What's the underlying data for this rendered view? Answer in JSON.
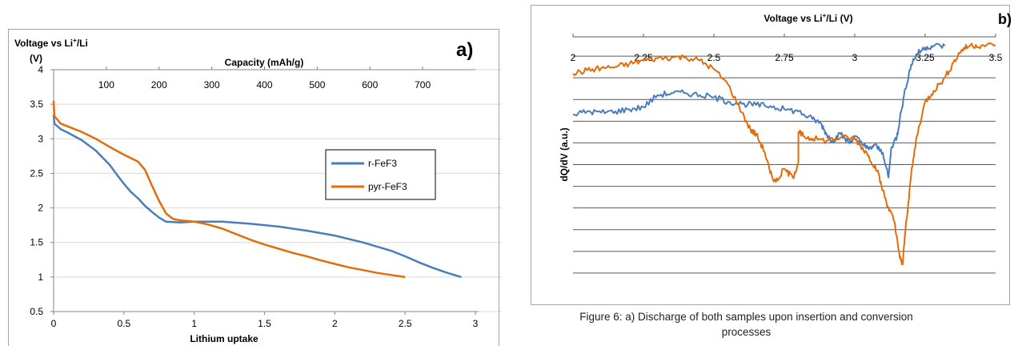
{
  "caption": {
    "line1": "Figure 6: a) Discharge of both samples upon insertion and conversion",
    "line2": "processes"
  },
  "chart_data": [
    {
      "panel_label": "a)",
      "type": "line",
      "ylabel_line1": "Voltage vs Li",
      "ylabel_sup": "+",
      "ylabel_tail": "/Li",
      "ylabel_line2": "(V)",
      "xlabel": "Lithium uptake",
      "top_axis_label": "Capacity  (mAh/g)",
      "ylim": [
        0.5,
        4
      ],
      "yticks": [
        "0.5",
        "1",
        "1.5",
        "2",
        "2.5",
        "3",
        "3.5",
        "4"
      ],
      "xlim": [
        0,
        3
      ],
      "xticks": [
        "0",
        "0.5",
        "1",
        "1.5",
        "2",
        "2.5",
        "3"
      ],
      "top_xlim": [
        0,
        800
      ],
      "top_xticks": [
        "100",
        "200",
        "300",
        "400",
        "500",
        "600",
        "700"
      ],
      "grid": true,
      "legend_position": "right",
      "series": [
        {
          "name": "r-FeF3",
          "color": "#4a7ebb",
          "points": [
            [
              0,
              3.35
            ],
            [
              0.005,
              3.22
            ],
            [
              0.05,
              3.14
            ],
            [
              0.1,
              3.09
            ],
            [
              0.2,
              2.98
            ],
            [
              0.3,
              2.83
            ],
            [
              0.4,
              2.62
            ],
            [
              0.45,
              2.48
            ],
            [
              0.5,
              2.35
            ],
            [
              0.55,
              2.23
            ],
            [
              0.6,
              2.14
            ],
            [
              0.65,
              2.03
            ],
            [
              0.7,
              1.94
            ],
            [
              0.75,
              1.86
            ],
            [
              0.8,
              1.8
            ],
            [
              0.9,
              1.79
            ],
            [
              1.0,
              1.8
            ],
            [
              1.2,
              1.8
            ],
            [
              1.4,
              1.77
            ],
            [
              1.6,
              1.73
            ],
            [
              1.8,
              1.67
            ],
            [
              2.0,
              1.6
            ],
            [
              2.2,
              1.5
            ],
            [
              2.4,
              1.38
            ],
            [
              2.5,
              1.3
            ],
            [
              2.6,
              1.21
            ],
            [
              2.7,
              1.13
            ],
            [
              2.8,
              1.06
            ],
            [
              2.9,
              1.0
            ]
          ]
        },
        {
          "name": "pyr-FeF3",
          "color": "#e46c0a",
          "points": [
            [
              0,
              3.55
            ],
            [
              0.005,
              3.33
            ],
            [
              0.05,
              3.22
            ],
            [
              0.1,
              3.18
            ],
            [
              0.2,
              3.1
            ],
            [
              0.3,
              3.0
            ],
            [
              0.4,
              2.88
            ],
            [
              0.5,
              2.77
            ],
            [
              0.6,
              2.67
            ],
            [
              0.65,
              2.55
            ],
            [
              0.7,
              2.32
            ],
            [
              0.75,
              2.1
            ],
            [
              0.8,
              1.92
            ],
            [
              0.85,
              1.84
            ],
            [
              0.9,
              1.82
            ],
            [
              1.0,
              1.8
            ],
            [
              1.1,
              1.76
            ],
            [
              1.2,
              1.7
            ],
            [
              1.3,
              1.62
            ],
            [
              1.4,
              1.54
            ],
            [
              1.5,
              1.47
            ],
            [
              1.6,
              1.41
            ],
            [
              1.7,
              1.35
            ],
            [
              1.8,
              1.3
            ],
            [
              1.9,
              1.24
            ],
            [
              2.0,
              1.19
            ],
            [
              2.1,
              1.14
            ],
            [
              2.2,
              1.1
            ],
            [
              2.3,
              1.06
            ],
            [
              2.4,
              1.03
            ],
            [
              2.5,
              1.0
            ]
          ]
        }
      ]
    },
    {
      "panel_label": "b)",
      "type": "line",
      "top_axis_label_main": "Voltage vs Li",
      "top_axis_label_sup": "+",
      "top_axis_label_tail": "/Li (V)",
      "ylabel": "dQ/dV (a.u.)",
      "xlim": [
        2,
        3.5
      ],
      "xticks": [
        "2",
        "2.25",
        "2.5",
        "2.75",
        "3",
        "3.25",
        "3.5"
      ],
      "ylim": [
        -11,
        1
      ],
      "grid": true,
      "series": [
        {
          "name": "r-FeF3",
          "color": "#4a7ebb",
          "points": [
            [
              2.0,
              -2.7
            ],
            [
              2.05,
              -2.55
            ],
            [
              2.1,
              -2.6
            ],
            [
              2.15,
              -2.55
            ],
            [
              2.2,
              -2.45
            ],
            [
              2.25,
              -2.35
            ],
            [
              2.3,
              -1.8
            ],
            [
              2.35,
              -1.7
            ],
            [
              2.4,
              -1.7
            ],
            [
              2.45,
              -1.8
            ],
            [
              2.5,
              -1.9
            ],
            [
              2.55,
              -2.1
            ],
            [
              2.6,
              -2.2
            ],
            [
              2.65,
              -2.25
            ],
            [
              2.7,
              -2.3
            ],
            [
              2.75,
              -2.45
            ],
            [
              2.8,
              -2.55
            ],
            [
              2.85,
              -2.9
            ],
            [
              2.88,
              -3.1
            ],
            [
              2.9,
              -3.6
            ],
            [
              2.92,
              -3.9
            ],
            [
              2.95,
              -3.6
            ],
            [
              2.98,
              -4.0
            ],
            [
              3.0,
              -3.7
            ],
            [
              3.03,
              -4.1
            ],
            [
              3.05,
              -4.3
            ],
            [
              3.07,
              -4.1
            ],
            [
              3.1,
              -4.45
            ],
            [
              3.12,
              -5.6
            ],
            [
              3.13,
              -4.2
            ],
            [
              3.15,
              -3.7
            ],
            [
              3.16,
              -2.9
            ],
            [
              3.18,
              -1.5
            ],
            [
              3.2,
              -0.4
            ],
            [
              3.22,
              0.1
            ],
            [
              3.25,
              0.4
            ],
            [
              3.28,
              0.48
            ],
            [
              3.32,
              0.48
            ]
          ]
        },
        {
          "name": "pyr-FeF3",
          "color": "#e46c0a",
          "points": [
            [
              2.0,
              -0.8
            ],
            [
              2.05,
              -0.65
            ],
            [
              2.1,
              -0.55
            ],
            [
              2.15,
              -0.5
            ],
            [
              2.2,
              -0.35
            ],
            [
              2.25,
              -0.2
            ],
            [
              2.3,
              -0.1
            ],
            [
              2.35,
              -0.05
            ],
            [
              2.4,
              -0.05
            ],
            [
              2.45,
              -0.2
            ],
            [
              2.5,
              -0.6
            ],
            [
              2.55,
              -1.3
            ],
            [
              2.6,
              -2.6
            ],
            [
              2.63,
              -3.4
            ],
            [
              2.65,
              -3.6
            ],
            [
              2.68,
              -4.4
            ],
            [
              2.7,
              -5.4
            ],
            [
              2.72,
              -5.8
            ],
            [
              2.75,
              -5.2
            ],
            [
              2.78,
              -5.6
            ],
            [
              2.8,
              -4.9
            ],
            [
              2.8,
              -3.5
            ],
            [
              2.82,
              -3.7
            ],
            [
              2.85,
              -3.8
            ],
            [
              2.9,
              -3.9
            ],
            [
              2.95,
              -3.75
            ],
            [
              3.0,
              -3.8
            ],
            [
              3.02,
              -4.1
            ],
            [
              3.05,
              -4.6
            ],
            [
              3.08,
              -5.3
            ],
            [
              3.1,
              -6.2
            ],
            [
              3.12,
              -7.0
            ],
            [
              3.14,
              -7.6
            ],
            [
              3.16,
              -9.3
            ],
            [
              3.17,
              -9.6
            ],
            [
              3.18,
              -8.0
            ],
            [
              3.2,
              -5.5
            ],
            [
              3.22,
              -3.7
            ],
            [
              3.25,
              -2.1
            ],
            [
              3.28,
              -1.6
            ],
            [
              3.32,
              -1.0
            ],
            [
              3.35,
              -0.3
            ],
            [
              3.38,
              0.3
            ],
            [
              3.41,
              0.5
            ],
            [
              3.45,
              0.5
            ],
            [
              3.5,
              0.5
            ]
          ]
        }
      ]
    }
  ]
}
